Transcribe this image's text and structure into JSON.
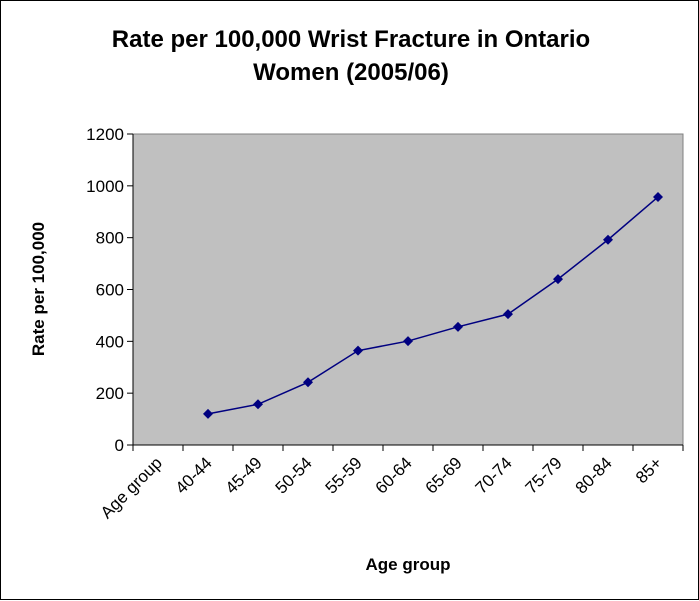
{
  "chart_data": {
    "type": "line",
    "title_lines": [
      "Rate per 100,000 Wrist Fracture in Ontario",
      "Women (2005/06)"
    ],
    "xlabel": "Age group",
    "ylabel": "Rate per 100,000",
    "categories": [
      "Age group",
      "40-44",
      "45-49",
      "50-54",
      "55-59",
      "60-64",
      "65-69",
      "70-74",
      "75-79",
      "80-84",
      "85+"
    ],
    "values": [
      null,
      120,
      157,
      242,
      364,
      401,
      456,
      505,
      640,
      792,
      957
    ],
    "ylim": [
      0,
      1200
    ],
    "yticks": [
      0,
      200,
      400,
      600,
      800,
      1000,
      1200
    ],
    "grid": false,
    "legend": "none",
    "colors": {
      "plot_background": "#c0c0c0",
      "series_line": "#000080",
      "marker": "#000080"
    },
    "marker": "diamond-icon"
  }
}
